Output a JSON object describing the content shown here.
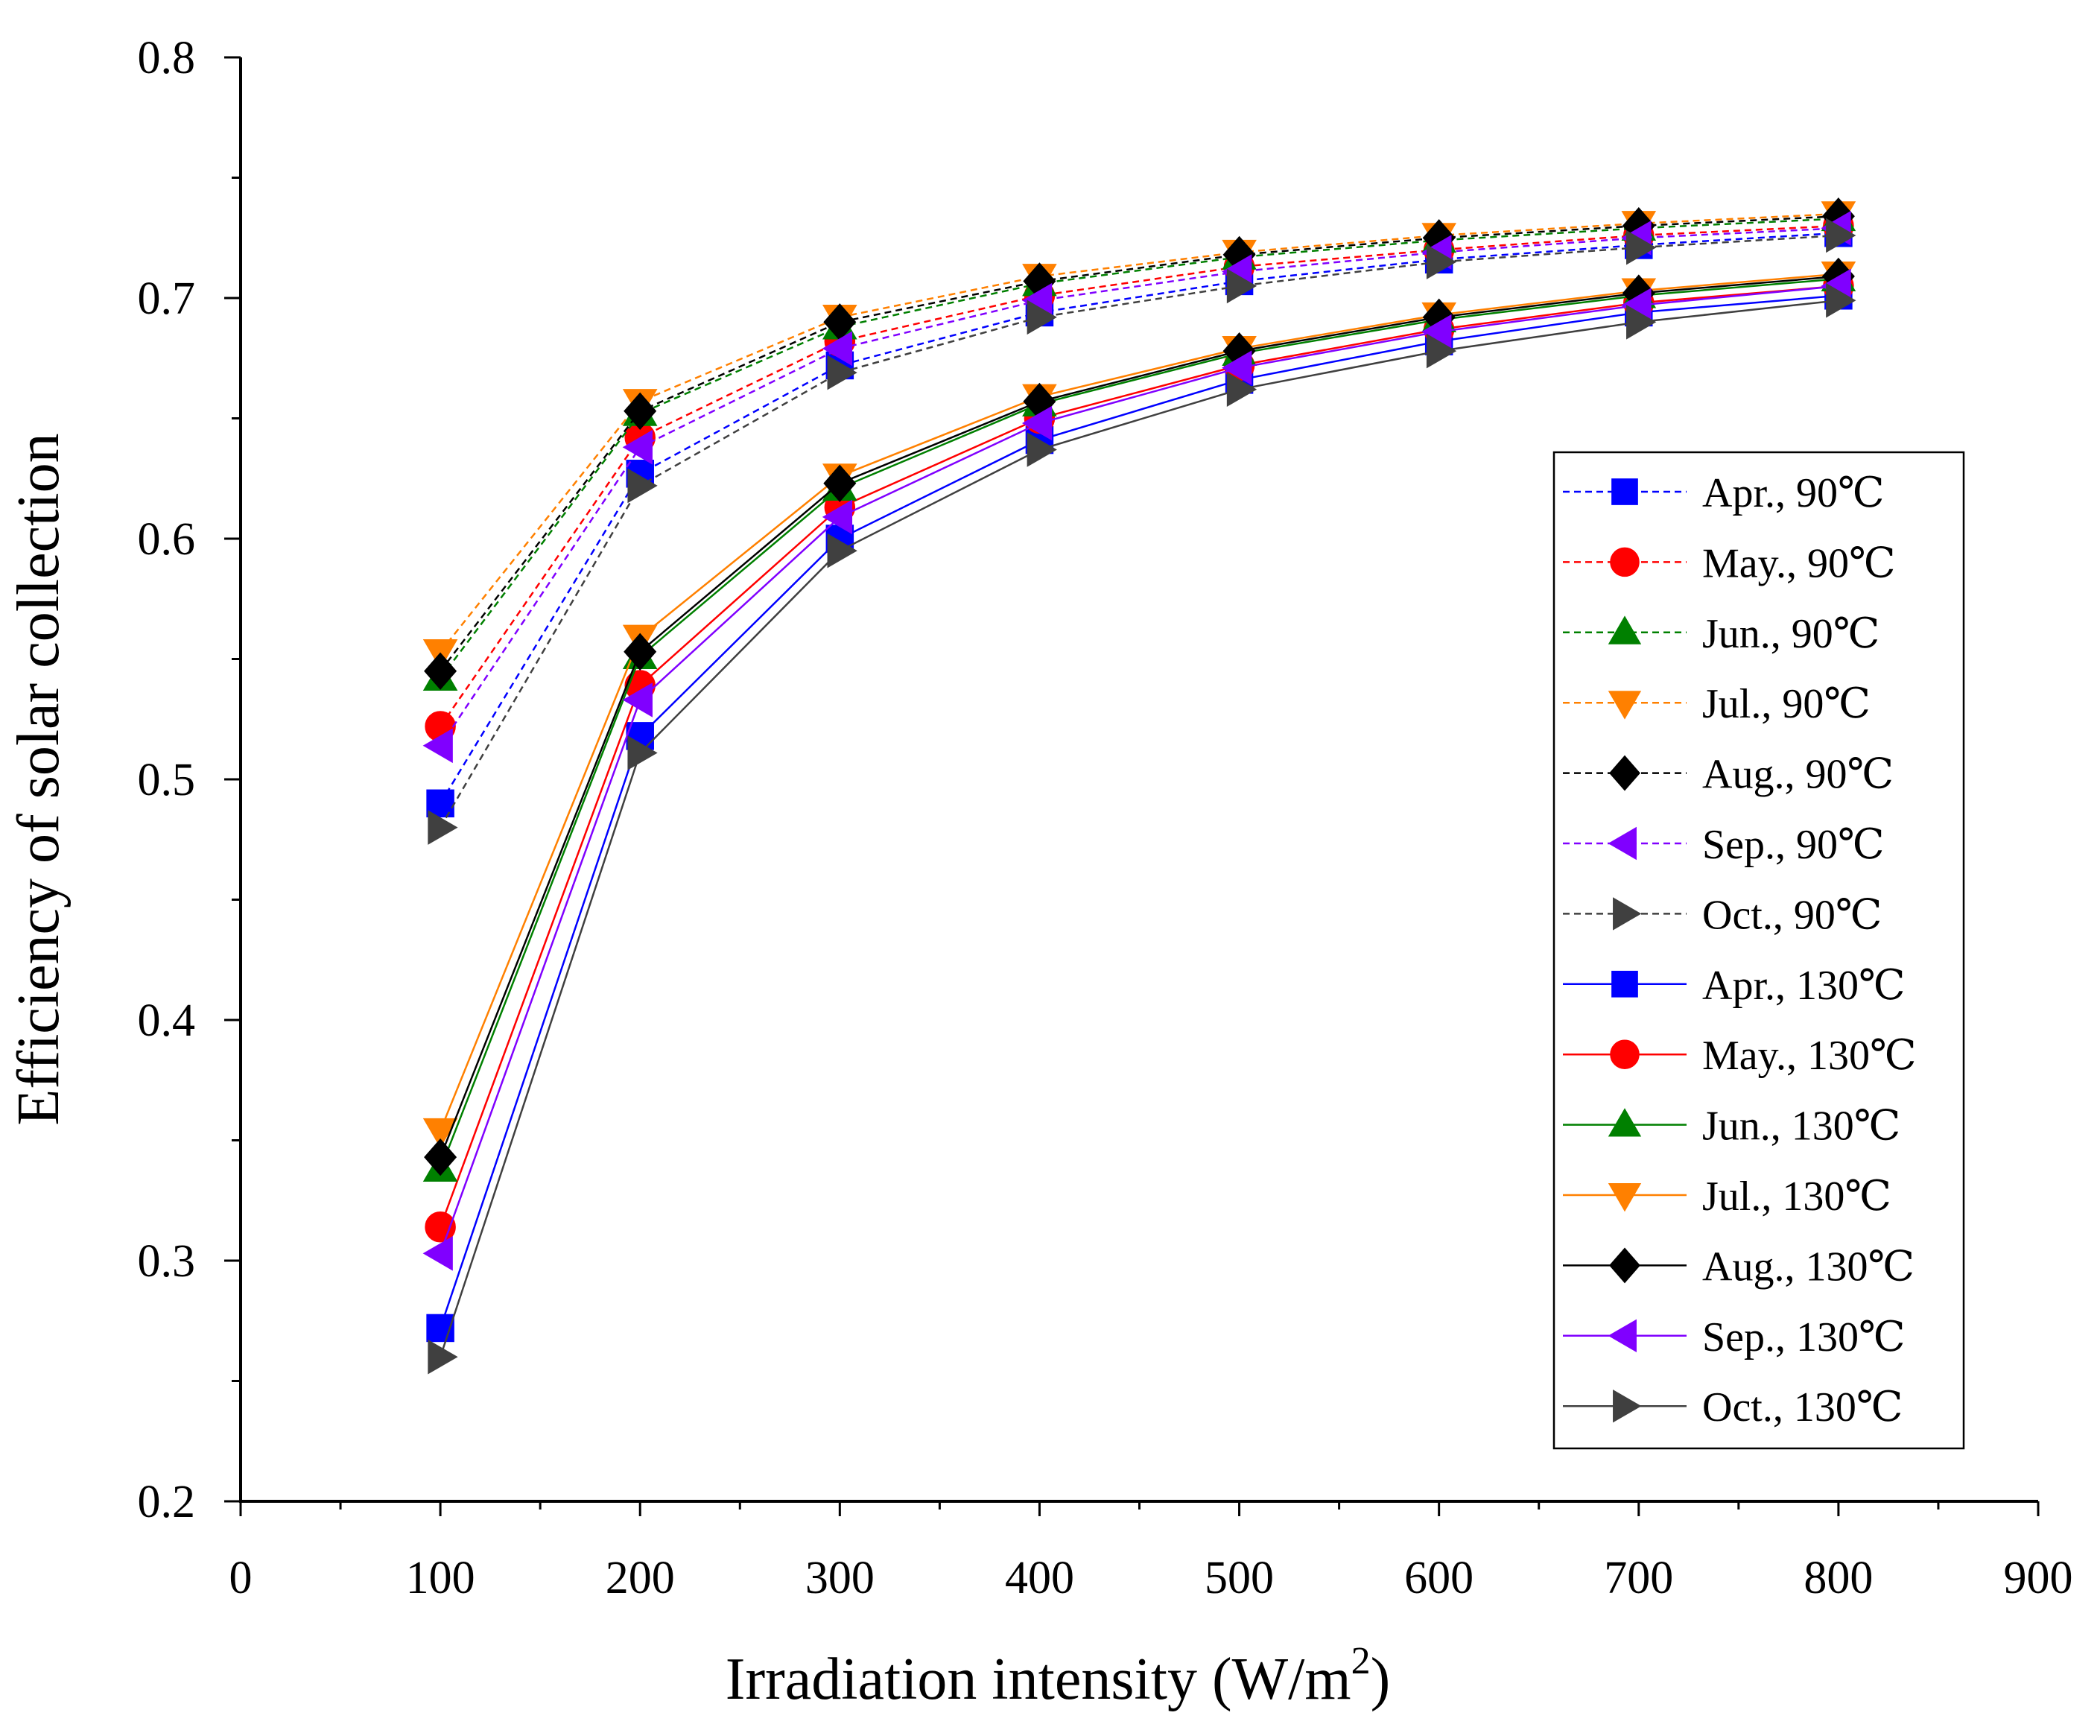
{
  "chart_data": {
    "type": "line",
    "title": "",
    "xlabel": "Irradiation intensity (W/m",
    "xlabel_sup": "2",
    "xlabel_close": ")",
    "ylabel": "Efficiency of solar collection",
    "xlim": [
      0,
      900
    ],
    "ylim": [
      0.2,
      0.8
    ],
    "x_ticks": [
      0,
      100,
      200,
      300,
      400,
      500,
      600,
      700,
      800,
      900
    ],
    "x_tick_labels": [
      "0",
      "100",
      "200",
      "300",
      "400",
      "500",
      "600",
      "700",
      "800",
      "900"
    ],
    "y_ticks": [
      0.2,
      0.3,
      0.4,
      0.5,
      0.6,
      0.7,
      0.8
    ],
    "y_tick_labels": [
      "0.2",
      "0.3",
      "0.4",
      "0.5",
      "0.6",
      "0.7",
      "0.8"
    ],
    "grid": false,
    "legend_position": "right",
    "x": [
      100,
      200,
      300,
      400,
      500,
      600,
      700,
      800
    ],
    "series": [
      {
        "name": "Apr., 90℃",
        "color": "#0000ff",
        "marker": "square",
        "dash": true,
        "values": [
          0.49,
          0.627,
          0.672,
          0.694,
          0.707,
          0.716,
          0.722,
          0.727
        ]
      },
      {
        "name": "May., 90℃",
        "color": "#ff0000",
        "marker": "circle",
        "dash": true,
        "values": [
          0.522,
          0.642,
          0.682,
          0.701,
          0.713,
          0.72,
          0.726,
          0.73
        ]
      },
      {
        "name": "Jun., 90℃",
        "color": "#008000",
        "marker": "triangle-up",
        "dash": true,
        "values": [
          0.542,
          0.652,
          0.688,
          0.706,
          0.717,
          0.724,
          0.729,
          0.733
        ]
      },
      {
        "name": "Jul., 90℃",
        "color": "#ff8000",
        "marker": "triangle-down",
        "dash": true,
        "values": [
          0.553,
          0.657,
          0.692,
          0.709,
          0.719,
          0.726,
          0.731,
          0.735
        ]
      },
      {
        "name": "Aug., 90℃",
        "color": "#000000",
        "marker": "diamond",
        "dash": true,
        "values": [
          0.545,
          0.653,
          0.69,
          0.707,
          0.718,
          0.725,
          0.73,
          0.734
        ]
      },
      {
        "name": "Sep., 90℃",
        "color": "#8000ff",
        "marker": "triangle-left",
        "dash": true,
        "values": [
          0.514,
          0.638,
          0.679,
          0.699,
          0.711,
          0.719,
          0.725,
          0.729
        ]
      },
      {
        "name": "Oct., 90℃",
        "color": "#404040",
        "marker": "triangle-right",
        "dash": true,
        "values": [
          0.48,
          0.622,
          0.669,
          0.692,
          0.705,
          0.715,
          0.721,
          0.726
        ]
      },
      {
        "name": "Apr., 130℃",
        "color": "#0000ff",
        "marker": "square",
        "dash": false,
        "values": [
          0.272,
          0.518,
          0.6,
          0.641,
          0.666,
          0.682,
          0.694,
          0.701
        ]
      },
      {
        "name": "May., 130℃",
        "color": "#ff0000",
        "marker": "circle",
        "dash": false,
        "values": [
          0.314,
          0.539,
          0.613,
          0.65,
          0.672,
          0.687,
          0.698,
          0.705
        ]
      },
      {
        "name": "Jun., 130℃",
        "color": "#008000",
        "marker": "triangle-up",
        "dash": false,
        "values": [
          0.338,
          0.551,
          0.621,
          0.656,
          0.677,
          0.691,
          0.701,
          0.708
        ]
      },
      {
        "name": "Jul., 130℃",
        "color": "#ff8000",
        "marker": "triangle-down",
        "dash": false,
        "values": [
          0.354,
          0.559,
          0.626,
          0.659,
          0.679,
          0.693,
          0.703,
          0.71
        ]
      },
      {
        "name": "Aug., 130℃",
        "color": "#000000",
        "marker": "diamond",
        "dash": false,
        "values": [
          0.343,
          0.553,
          0.623,
          0.657,
          0.678,
          0.692,
          0.702,
          0.709
        ]
      },
      {
        "name": "Sep., 130℃",
        "color": "#8000ff",
        "marker": "triangle-left",
        "dash": false,
        "values": [
          0.303,
          0.533,
          0.609,
          0.648,
          0.671,
          0.686,
          0.697,
          0.705
        ]
      },
      {
        "name": "Oct., 130℃",
        "color": "#404040",
        "marker": "triangle-right",
        "dash": false,
        "values": [
          0.26,
          0.511,
          0.595,
          0.637,
          0.662,
          0.678,
          0.69,
          0.699
        ]
      }
    ]
  }
}
